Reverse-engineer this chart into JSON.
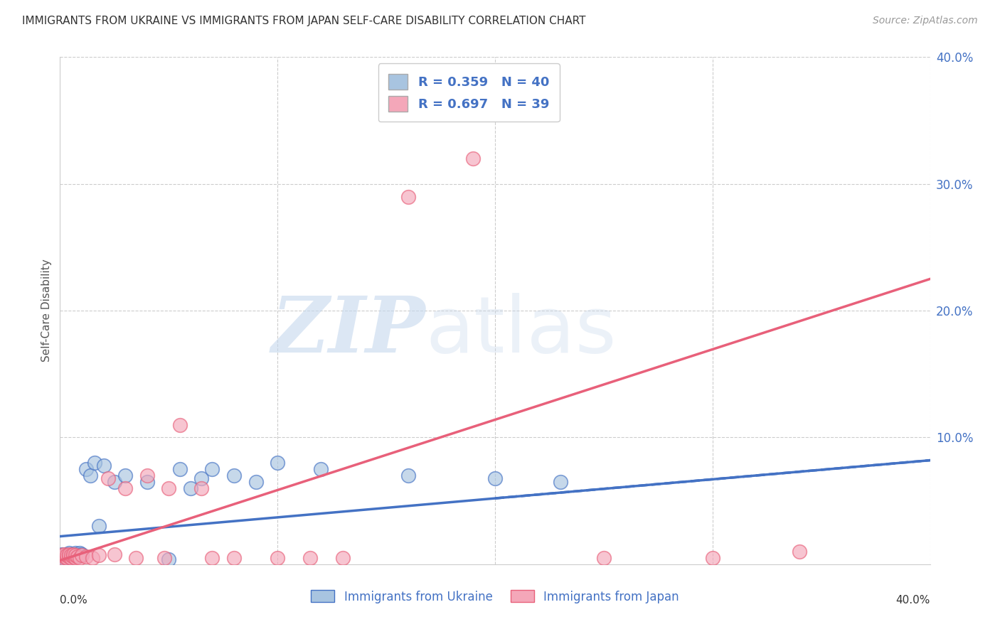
{
  "title": "IMMIGRANTS FROM UKRAINE VS IMMIGRANTS FROM JAPAN SELF-CARE DISABILITY CORRELATION CHART",
  "source": "Source: ZipAtlas.com",
  "ylabel": "Self-Care Disability",
  "legend_ukraine": "Immigrants from Ukraine",
  "legend_japan": "Immigrants from Japan",
  "ukraine_R": "0.359",
  "ukraine_N": "40",
  "japan_R": "0.697",
  "japan_N": "39",
  "ukraine_color": "#a8c4e0",
  "japan_color": "#f4a7b9",
  "ukraine_line_color": "#4472c4",
  "japan_line_color": "#e8607a",
  "xlim": [
    0.0,
    0.4
  ],
  "ylim": [
    0.0,
    0.4
  ],
  "yticks": [
    0.0,
    0.1,
    0.2,
    0.3,
    0.4
  ],
  "ytick_labels": [
    "",
    "10.0%",
    "20.0%",
    "30.0%",
    "40.0%"
  ],
  "background_color": "#ffffff",
  "ukraine_x": [
    0.001,
    0.001,
    0.002,
    0.002,
    0.003,
    0.003,
    0.003,
    0.004,
    0.004,
    0.005,
    0.005,
    0.006,
    0.006,
    0.007,
    0.007,
    0.008,
    0.008,
    0.009,
    0.009,
    0.01,
    0.012,
    0.014,
    0.016,
    0.018,
    0.02,
    0.025,
    0.03,
    0.04,
    0.05,
    0.055,
    0.06,
    0.065,
    0.07,
    0.08,
    0.09,
    0.1,
    0.12,
    0.16,
    0.2,
    0.23
  ],
  "ukraine_y": [
    0.006,
    0.008,
    0.005,
    0.007,
    0.006,
    0.008,
    0.005,
    0.006,
    0.009,
    0.005,
    0.007,
    0.006,
    0.008,
    0.007,
    0.009,
    0.006,
    0.008,
    0.007,
    0.009,
    0.008,
    0.075,
    0.07,
    0.08,
    0.03,
    0.078,
    0.065,
    0.07,
    0.065,
    0.004,
    0.075,
    0.06,
    0.068,
    0.075,
    0.07,
    0.065,
    0.08,
    0.075,
    0.07,
    0.068,
    0.065
  ],
  "japan_x": [
    0.001,
    0.001,
    0.002,
    0.002,
    0.003,
    0.003,
    0.004,
    0.004,
    0.005,
    0.005,
    0.006,
    0.006,
    0.007,
    0.007,
    0.008,
    0.009,
    0.01,
    0.012,
    0.015,
    0.018,
    0.022,
    0.025,
    0.03,
    0.035,
    0.04,
    0.048,
    0.055,
    0.065,
    0.08,
    0.1,
    0.115,
    0.13,
    0.16,
    0.19,
    0.25,
    0.3,
    0.34,
    0.05,
    0.07
  ],
  "japan_y": [
    0.005,
    0.007,
    0.006,
    0.008,
    0.005,
    0.007,
    0.006,
    0.008,
    0.005,
    0.007,
    0.006,
    0.008,
    0.005,
    0.007,
    0.006,
    0.005,
    0.007,
    0.006,
    0.005,
    0.007,
    0.068,
    0.008,
    0.06,
    0.005,
    0.07,
    0.005,
    0.11,
    0.06,
    0.005,
    0.005,
    0.005,
    0.005,
    0.29,
    0.32,
    0.005,
    0.005,
    0.01,
    0.06,
    0.005
  ],
  "ukraine_trendline_x": [
    0.0,
    0.4
  ],
  "ukraine_trendline_y": [
    0.022,
    0.082
  ],
  "japan_trendline_x": [
    0.0,
    0.4
  ],
  "japan_trendline_y": [
    0.003,
    0.225
  ]
}
